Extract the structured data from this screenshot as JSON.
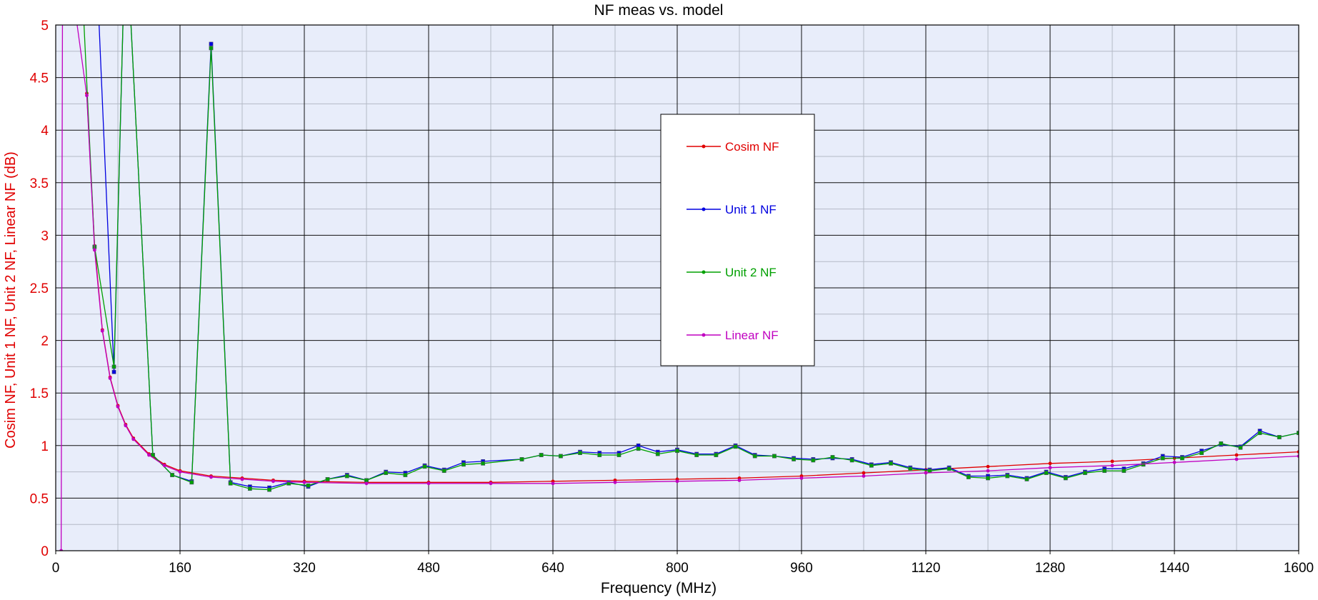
{
  "chart_data": {
    "type": "line",
    "title": "NF meas vs. model",
    "xlabel": "Frequency (MHz)",
    "ylabel": "Cosim NF, Unit 1 NF, Unit 2 NF, Linear NF (dB)",
    "xlim": [
      0,
      1600
    ],
    "ylim": [
      0,
      5
    ],
    "x_ticks": [
      0,
      160,
      320,
      480,
      640,
      800,
      960,
      1120,
      1280,
      1440,
      1600
    ],
    "y_ticks": [
      0,
      0.5,
      1,
      1.5,
      2,
      2.5,
      3,
      3.5,
      4,
      4.5,
      5
    ],
    "x_tick_labels": [
      "0",
      "160",
      "320",
      "480",
      "640",
      "800",
      "960",
      "1120",
      "1280",
      "1440",
      "1600"
    ],
    "y_tick_labels": [
      "0",
      "0.5",
      "1",
      "1.5",
      "2",
      "2.5",
      "3",
      "3.5",
      "4",
      "4.5",
      "5"
    ],
    "grid": true,
    "legend_position": "center",
    "series": [
      {
        "name": "Cosim NF",
        "color": "#e00000",
        "x": [
          40,
          50,
          60,
          70,
          80,
          90,
          100,
          120,
          140,
          160,
          200,
          240,
          280,
          320,
          400,
          480,
          560,
          640,
          720,
          800,
          880,
          960,
          1040,
          1120,
          1200,
          1280,
          1360,
          1440,
          1520,
          1600
        ],
        "y": [
          4.35,
          2.9,
          2.1,
          1.65,
          1.38,
          1.2,
          1.07,
          0.92,
          0.82,
          0.76,
          0.71,
          0.69,
          0.67,
          0.66,
          0.65,
          0.65,
          0.65,
          0.66,
          0.67,
          0.68,
          0.69,
          0.71,
          0.74,
          0.77,
          0.8,
          0.83,
          0.85,
          0.88,
          0.91,
          0.94
        ]
      },
      {
        "name": "Unit 1 NF",
        "color": "#0000e0",
        "x": [
          50,
          75,
          90,
          125,
          150,
          175,
          200,
          225,
          250,
          275,
          300,
          325,
          350,
          375,
          400,
          425,
          450,
          475,
          500,
          525,
          550,
          600,
          625,
          650,
          675,
          700,
          725,
          750,
          775,
          800,
          825,
          850,
          875,
          900,
          925,
          950,
          975,
          1000,
          1025,
          1050,
          1075,
          1100,
          1125,
          1150,
          1175,
          1200,
          1225,
          1250,
          1275,
          1300,
          1325,
          1350,
          1375,
          1400,
          1425,
          1450,
          1475,
          1500,
          1525,
          1550,
          1575,
          1600
        ],
        "y": [
          6,
          1.7,
          6,
          0.91,
          0.72,
          0.66,
          4.82,
          0.65,
          0.61,
          0.6,
          0.65,
          0.61,
          0.68,
          0.72,
          0.67,
          0.75,
          0.74,
          0.81,
          0.77,
          0.84,
          0.85,
          0.87,
          0.91,
          0.9,
          0.94,
          0.93,
          0.93,
          1.0,
          0.94,
          0.96,
          0.92,
          0.92,
          1.0,
          0.91,
          0.9,
          0.88,
          0.87,
          0.88,
          0.87,
          0.82,
          0.84,
          0.79,
          0.77,
          0.79,
          0.71,
          0.71,
          0.72,
          0.69,
          0.75,
          0.7,
          0.75,
          0.78,
          0.78,
          0.83,
          0.9,
          0.89,
          0.95,
          1.01,
          0.99,
          1.14,
          1.08,
          1.12
        ]
      },
      {
        "name": "Unit 2 NF",
        "color": "#00a000",
        "x": [
          30,
          50,
          75,
          90,
          125,
          150,
          175,
          200,
          225,
          250,
          275,
          300,
          325,
          350,
          375,
          400,
          425,
          450,
          475,
          500,
          525,
          550,
          600,
          625,
          650,
          675,
          700,
          725,
          750,
          775,
          800,
          825,
          850,
          875,
          900,
          925,
          950,
          975,
          1000,
          1025,
          1050,
          1075,
          1100,
          1125,
          1150,
          1175,
          1200,
          1225,
          1250,
          1275,
          1300,
          1325,
          1350,
          1375,
          1400,
          1425,
          1450,
          1475,
          1500,
          1525,
          1550,
          1575,
          1600
        ],
        "y": [
          6,
          2.89,
          1.75,
          6,
          0.91,
          0.72,
          0.65,
          4.78,
          0.64,
          0.59,
          0.58,
          0.64,
          0.62,
          0.68,
          0.71,
          0.67,
          0.74,
          0.72,
          0.8,
          0.76,
          0.82,
          0.83,
          0.87,
          0.91,
          0.9,
          0.93,
          0.91,
          0.91,
          0.97,
          0.92,
          0.95,
          0.91,
          0.91,
          0.99,
          0.9,
          0.9,
          0.87,
          0.86,
          0.89,
          0.86,
          0.81,
          0.83,
          0.78,
          0.76,
          0.78,
          0.7,
          0.69,
          0.71,
          0.68,
          0.74,
          0.69,
          0.74,
          0.76,
          0.76,
          0.82,
          0.88,
          0.88,
          0.93,
          1.02,
          0.98,
          1.12,
          1.08,
          1.12
        ]
      },
      {
        "name": "Linear NF",
        "color": "#c000c0",
        "x": [
          7,
          9,
          40,
          50,
          60,
          70,
          80,
          90,
          100,
          120,
          140,
          160,
          200,
          240,
          280,
          320,
          400,
          480,
          560,
          640,
          720,
          800,
          880,
          960,
          1040,
          1120,
          1200,
          1280,
          1360,
          1440,
          1520,
          1600
        ],
        "y": [
          0,
          6,
          4.33,
          2.86,
          2.09,
          1.64,
          1.37,
          1.19,
          1.06,
          0.91,
          0.81,
          0.75,
          0.7,
          0.68,
          0.66,
          0.65,
          0.64,
          0.64,
          0.64,
          0.64,
          0.65,
          0.66,
          0.67,
          0.69,
          0.71,
          0.74,
          0.76,
          0.79,
          0.81,
          0.84,
          0.87,
          0.9
        ]
      }
    ]
  }
}
